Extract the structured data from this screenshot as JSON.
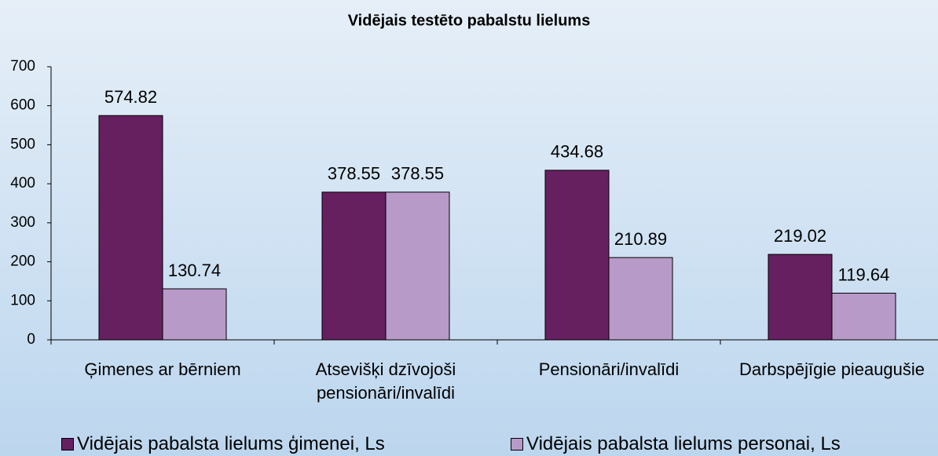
{
  "chart_data": {
    "type": "bar",
    "title": "Vidējais testēto pabalstu lielums",
    "categories": [
      "Ģimenes ar bērniem",
      "Atsevišķi dzīvojoši pensionāri/invalīdi",
      "Pensionāri/invalīdi",
      "Darbspējīgie pieaugušie"
    ],
    "series": [
      {
        "name": "Vidējais pabalsta lielums ģimenei, Ls",
        "color": "#662060",
        "values": [
          574.82,
          378.55,
          434.68,
          219.02
        ]
      },
      {
        "name": "Vidējais pabalsta lielums personai, Ls",
        "color": "#b89ac8",
        "values": [
          130.74,
          378.55,
          210.89,
          119.64
        ]
      }
    ],
    "ylim": [
      0,
      700
    ],
    "yticks": [
      0,
      100,
      200,
      300,
      400,
      500,
      600,
      700
    ],
    "grid": false
  }
}
